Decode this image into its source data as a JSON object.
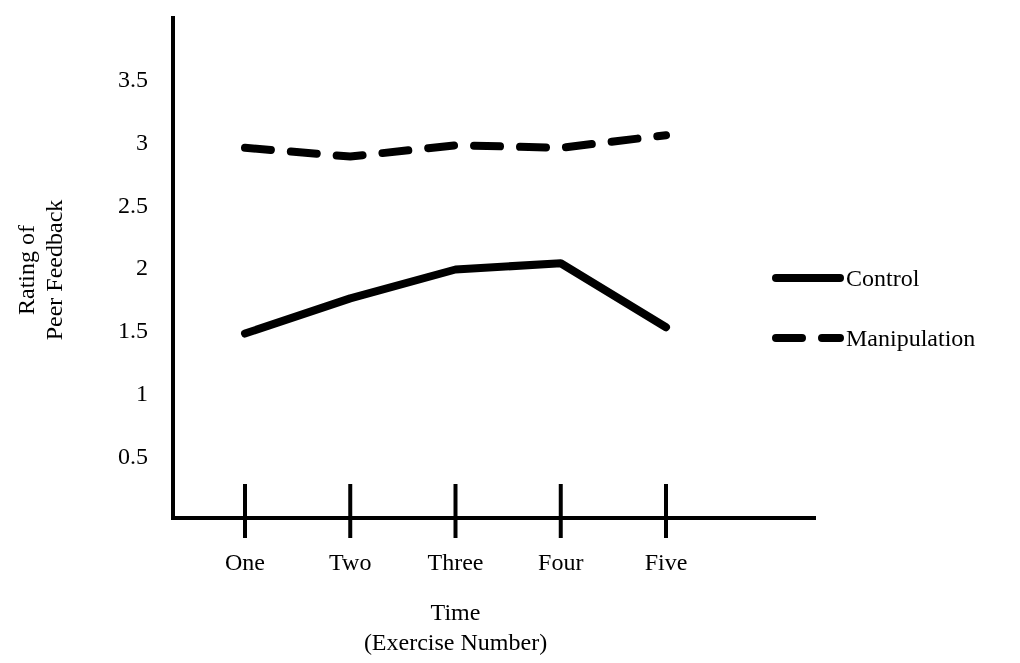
{
  "chart_data": {
    "type": "line",
    "xlabel": "Time\n(Exercise Number)",
    "ylabel": "Rating of\nPeer Feedback",
    "categories": [
      "One",
      "Two",
      "Three",
      "Four",
      "Five"
    ],
    "series": [
      {
        "name": "Control",
        "color": "#000000",
        "values": [
          1.47,
          1.75,
          1.98,
          2.03,
          1.52
        ],
        "line_style": "solid"
      },
      {
        "name": "Manipulation",
        "color": "#000000",
        "values": [
          2.95,
          2.88,
          2.97,
          2.95,
          3.05
        ],
        "line_style": "dashed"
      }
    ],
    "ylim": [
      0,
      4
    ],
    "yticks": [
      0.5,
      1,
      1.5,
      2,
      2.5,
      3,
      3.5
    ],
    "grid": false,
    "legend": "right",
    "marker": "none"
  }
}
